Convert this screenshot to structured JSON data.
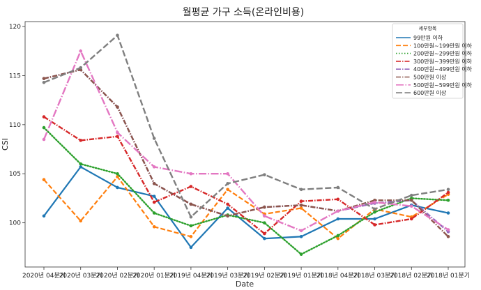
{
  "chart_data": {
    "type": "line",
    "title": "월평균 가구 소득(온라인비용)",
    "xlabel": "Date",
    "ylabel": "CSI",
    "ylim": [
      95.5,
      120.5
    ],
    "yticks": [
      100,
      105,
      110,
      115,
      120
    ],
    "grid": false,
    "legend_title": "세부항목",
    "legend_position": "top-right",
    "categories": [
      "2020년 04분기",
      "2020년 03분기",
      "2020년 02분기",
      "2020년 01분기",
      "2019년 04분기",
      "2019년 03분기",
      "2019년 02분기",
      "2019년 01분기",
      "2018년 04분기",
      "2018년 03분기",
      "2018년 02분기",
      "2018년 01분기"
    ],
    "series": [
      {
        "name": "99만원 이하",
        "color": "#1f77b4",
        "dash": "solid",
        "width": 2.2,
        "values": [
          100.7,
          105.7,
          103.6,
          102.7,
          97.5,
          101.5,
          98.4,
          98.6,
          100.4,
          100.4,
          101.8,
          101.0
        ]
      },
      {
        "name": "100만원~199만원 이하",
        "color": "#ff7f0e",
        "dash": "dashed",
        "width": 2.2,
        "values": [
          104.4,
          100.2,
          104.7,
          99.6,
          98.6,
          103.4,
          100.9,
          101.5,
          98.4,
          101.4,
          100.6,
          102.9
        ]
      },
      {
        "name": "200만원~299만원 이하",
        "color": "#2ca02c",
        "dash": "dotted",
        "width": 2.4,
        "values": [
          109.7,
          106.0,
          105.0,
          101.0,
          99.7,
          100.8,
          100.0,
          96.8,
          98.7,
          101.1,
          102.5,
          102.3
        ]
      },
      {
        "name": "300만원~399만원 이하",
        "color": "#d62728",
        "dash": "dashdot",
        "width": 2.4,
        "values": [
          110.8,
          108.4,
          108.8,
          102.1,
          103.7,
          101.9,
          98.9,
          102.2,
          102.4,
          99.8,
          100.4,
          103.1
        ]
      },
      {
        "name": "400만원~499만원 이하",
        "color": "#9467bd",
        "dash": "dashdot",
        "width": 2.4,
        "values": [
          114.7,
          115.6,
          111.8,
          104.0,
          101.9,
          100.7,
          101.6,
          101.8,
          101.2,
          102.0,
          102.3,
          99.1
        ]
      },
      {
        "name": "500만원 이상",
        "color": "#8c564b",
        "dash": "dashdot",
        "width": 2.4,
        "values": [
          114.7,
          115.6,
          111.8,
          104.0,
          101.9,
          100.7,
          101.6,
          101.8,
          101.2,
          102.3,
          102.3,
          98.6
        ]
      },
      {
        "name": "500만원~599만원 이하",
        "color": "#e377c2",
        "dash": "longdashdot",
        "width": 2.4,
        "values": [
          108.5,
          117.5,
          109.2,
          105.7,
          105.0,
          105.0,
          100.7,
          99.2,
          101.2,
          102.1,
          101.7,
          99.3
        ]
      },
      {
        "name": "600만원 이상",
        "color": "#7f7f7f",
        "dash": "longdash",
        "width": 2.4,
        "values": [
          114.3,
          115.8,
          119.1,
          108.6,
          100.6,
          104.0,
          104.9,
          103.4,
          103.6,
          101.4,
          102.8,
          103.4
        ]
      }
    ]
  }
}
